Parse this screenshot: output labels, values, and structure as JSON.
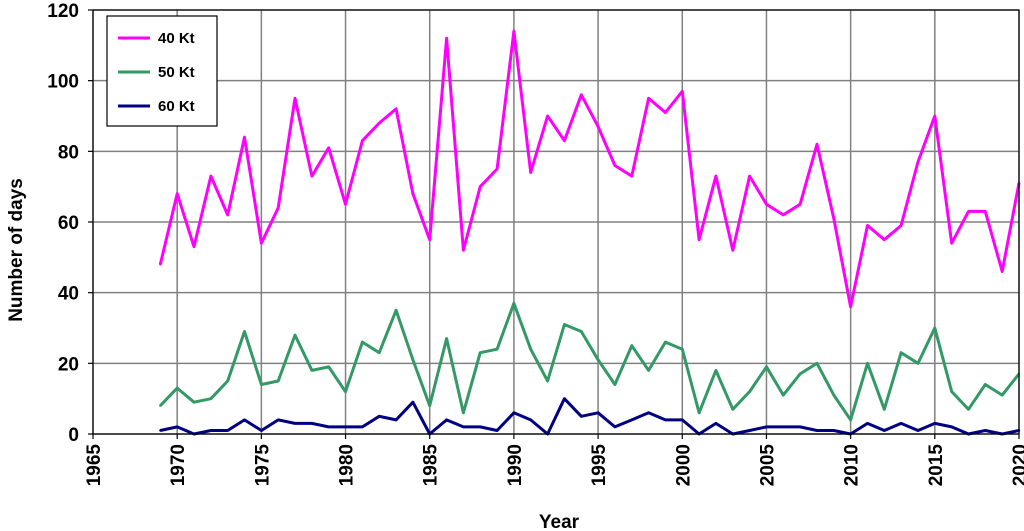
{
  "chart_data": {
    "type": "line",
    "title": "",
    "xlabel": "Year",
    "ylabel": "Number of days",
    "xlim": [
      1965,
      2020
    ],
    "ylim": [
      0,
      120
    ],
    "x_ticks": [
      1965,
      1970,
      1975,
      1980,
      1985,
      1990,
      1995,
      2000,
      2005,
      2010,
      2015,
      2020
    ],
    "y_ticks": [
      0,
      20,
      40,
      60,
      80,
      100,
      120
    ],
    "grid": true,
    "legend_position": "top-left",
    "x": [
      1969,
      1970,
      1971,
      1972,
      1973,
      1974,
      1975,
      1976,
      1977,
      1978,
      1979,
      1980,
      1981,
      1982,
      1983,
      1984,
      1985,
      1986,
      1987,
      1988,
      1989,
      1990,
      1991,
      1992,
      1993,
      1994,
      1995,
      1996,
      1997,
      1998,
      1999,
      2000,
      2001,
      2002,
      2003,
      2004,
      2005,
      2006,
      2007,
      2008,
      2009,
      2010,
      2011,
      2012,
      2013,
      2014,
      2015,
      2016,
      2017,
      2018,
      2019,
      2020
    ],
    "series": [
      {
        "name": "40 Kt",
        "color": "#FF00FF",
        "values": [
          48,
          68,
          53,
          73,
          62,
          84,
          54,
          64,
          95,
          73,
          81,
          65,
          83,
          88,
          92,
          68,
          55,
          112,
          52,
          70,
          75,
          114,
          74,
          90,
          83,
          96,
          87,
          76,
          73,
          95,
          91,
          97,
          55,
          73,
          52,
          73,
          65,
          62,
          65,
          82,
          61,
          36,
          59,
          55,
          59,
          77,
          90,
          54,
          63,
          63,
          46,
          71
        ]
      },
      {
        "name": "50 Kt",
        "color": "#339966",
        "values": [
          8,
          13,
          9,
          10,
          15,
          29,
          14,
          15,
          28,
          18,
          19,
          12,
          26,
          23,
          35,
          21,
          8,
          27,
          6,
          23,
          24,
          37,
          24,
          15,
          31,
          29,
          21,
          14,
          25,
          18,
          26,
          24,
          6,
          18,
          7,
          12,
          19,
          11,
          17,
          20,
          11,
          4,
          20,
          7,
          23,
          20,
          30,
          12,
          7,
          14,
          11,
          17
        ]
      },
      {
        "name": "60 Kt",
        "color": "#000080",
        "values": [
          1,
          2,
          0,
          1,
          1,
          4,
          1,
          4,
          3,
          3,
          2,
          2,
          2,
          5,
          4,
          9,
          0,
          4,
          2,
          2,
          1,
          6,
          4,
          0,
          10,
          5,
          6,
          2,
          4,
          6,
          4,
          4,
          0,
          3,
          0,
          1,
          2,
          2,
          2,
          1,
          1,
          0,
          3,
          1,
          3,
          1,
          3,
          2,
          0,
          1,
          0,
          1
        ]
      }
    ]
  }
}
